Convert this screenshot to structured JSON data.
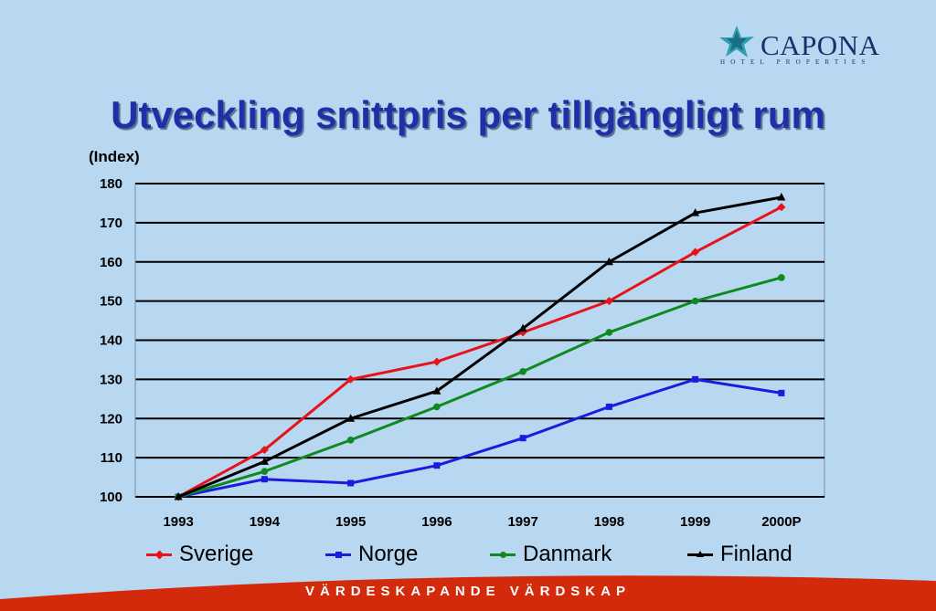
{
  "logo": {
    "name": "CAPONA",
    "tagline": "HOTEL PROPERTIES"
  },
  "title": "Utveckling snittpris per tillgängligt rum",
  "footer": "VÄRDESKAPANDE VÄRDSKAP",
  "colors": {
    "background": "#b8d7f0",
    "title": "#1f2fa8",
    "footer_band": "#d42a0c"
  },
  "chart_data": {
    "type": "line",
    "ylabel": "(Index)",
    "categories": [
      "1993",
      "1994",
      "1995",
      "1996",
      "1997",
      "1998",
      "1999",
      "2000P"
    ],
    "ylim": [
      100,
      180
    ],
    "yticks": [
      "100",
      "110",
      "120",
      "130",
      "140",
      "150",
      "160",
      "170",
      "180"
    ],
    "grid": true,
    "legend": "bottom",
    "series": [
      {
        "name": "Sverige",
        "color": "#e8121a",
        "marker": "diamond",
        "values": [
          100,
          112,
          130,
          134.5,
          142,
          150,
          162.5,
          174
        ]
      },
      {
        "name": "Norge",
        "color": "#1b1be0",
        "marker": "square",
        "values": [
          100,
          104.5,
          103.5,
          108,
          115,
          123,
          130,
          126.5
        ]
      },
      {
        "name": "Danmark",
        "color": "#0f8a20",
        "marker": "circle",
        "values": [
          100,
          106.5,
          114.5,
          123,
          132,
          142,
          150,
          156
        ]
      },
      {
        "name": "Finland",
        "color": "#000000",
        "marker": "triangle",
        "values": [
          100,
          109,
          120,
          127,
          143,
          160,
          172.5,
          176.5
        ]
      }
    ]
  }
}
